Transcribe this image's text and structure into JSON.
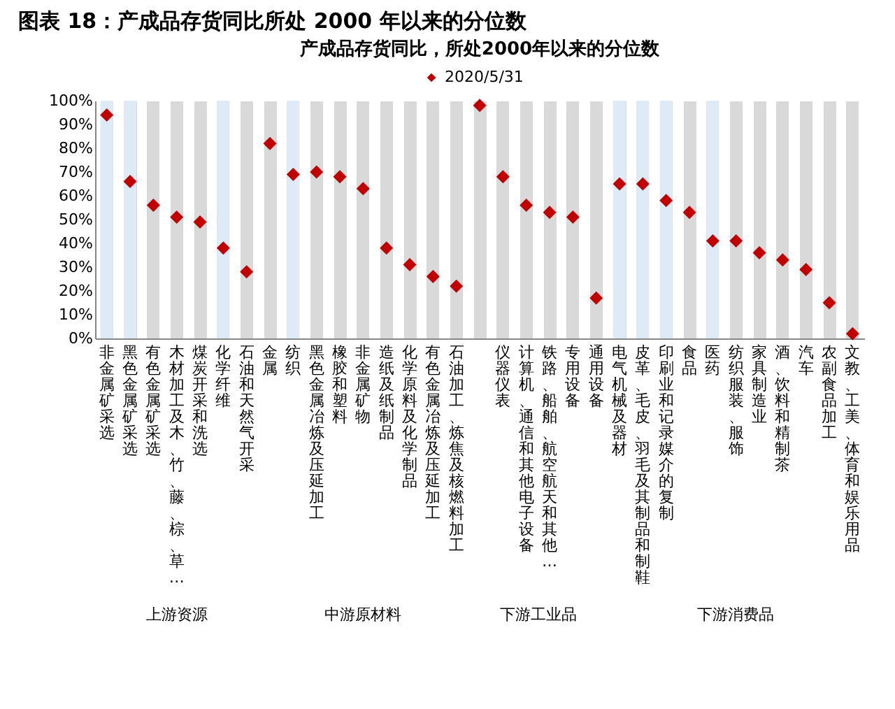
{
  "chart_data": {
    "type": "scatter",
    "title": "图表 18：产成品存货同比所处 2000 年以来的分位数",
    "subtitle": "产成品存货同比，所处2000年以来的分位数",
    "categories": [
      "非金属矿采选",
      "黑色金属矿采选",
      "有色金属矿采选",
      "木材加工及木、竹、藤、棕、草…",
      "煤炭开采和洗选",
      "化学纤维",
      "石油和天然气开采",
      "金属",
      "纺织",
      "黑色金属冶炼及压延加工",
      "橡胶和塑料",
      "非金属矿物",
      "造纸及纸制品",
      "化学原料及化学制品",
      "有色金属冶炼及压延加工",
      "石油加工、炼焦及核燃料加工",
      null,
      "仪器仪表",
      "计算机、通信和其他电子设备",
      "铁路、船舶、航空航天和其他…",
      "专用设备",
      "通用设备",
      "电气机械及器材",
      "皮革、毛皮、羽毛及其制品和制鞋",
      "印刷业和记录媒介的复制",
      "食品",
      "医药",
      "纺织服装、服饰",
      "家具制造业",
      "酒、饮料和精制茶",
      "汽车",
      "农副食品加工",
      "文教、工美、体育和娱乐用品"
    ],
    "series": [
      {
        "name": "2020/5/31",
        "color": "#c00000",
        "values": [
          94,
          66,
          56,
          51,
          49,
          38,
          28,
          82,
          69,
          70,
          68,
          63,
          38,
          31,
          26,
          22,
          98,
          68,
          56,
          53,
          51,
          17,
          65,
          65,
          58,
          53,
          41,
          41,
          36,
          33,
          29,
          15,
          2
        ]
      }
    ],
    "ylim": [
      0,
      100
    ],
    "yticks": [
      {
        "value": 0,
        "label": "0%"
      },
      {
        "value": 10,
        "label": "10%"
      },
      {
        "value": 20,
        "label": "20%"
      },
      {
        "value": 30,
        "label": "30%"
      },
      {
        "value": 40,
        "label": "40%"
      },
      {
        "value": 50,
        "label": "50%"
      },
      {
        "value": 60,
        "label": "60%"
      },
      {
        "value": 70,
        "label": "70%"
      },
      {
        "value": 80,
        "label": "80%"
      },
      {
        "value": 90,
        "label": "90%"
      },
      {
        "value": 100,
        "label": "100%"
      }
    ],
    "bands": [
      {
        "axis": "x",
        "from": "非金属矿采选",
        "to": "非金属矿采选",
        "color": "#deebf7"
      },
      {
        "axis": "x",
        "from": "黑色金属矿采选",
        "to": "黑色金属矿采选",
        "color": "#deebf7"
      },
      {
        "axis": "x",
        "from": "化学纤维",
        "to": "化学纤维",
        "color": "#deebf7"
      },
      {
        "axis": "x",
        "from": "纺织",
        "to": "纺织",
        "color": "#deebf7"
      },
      {
        "axis": "x",
        "from": "电气机械及器材",
        "to": "电气机械及器材",
        "color": "#deebf7"
      },
      {
        "axis": "x",
        "from": "皮革、毛皮、羽毛及其制品和制鞋",
        "to": "皮革、毛皮、羽毛及其制品和制鞋",
        "color": "#deebf7"
      },
      {
        "axis": "x",
        "from": "印刷业和记录媒介的复制",
        "to": "印刷业和记录媒介的复制",
        "color": "#deebf7"
      },
      {
        "axis": "x",
        "from": "医药",
        "to": "医药",
        "color": "#deebf7"
      }
    ],
    "annotations": [
      "上游资源",
      "中游原材料",
      "下游工业品",
      "下游消费品"
    ],
    "grid": "x",
    "legend": "top",
    "marker": "diamond"
  }
}
